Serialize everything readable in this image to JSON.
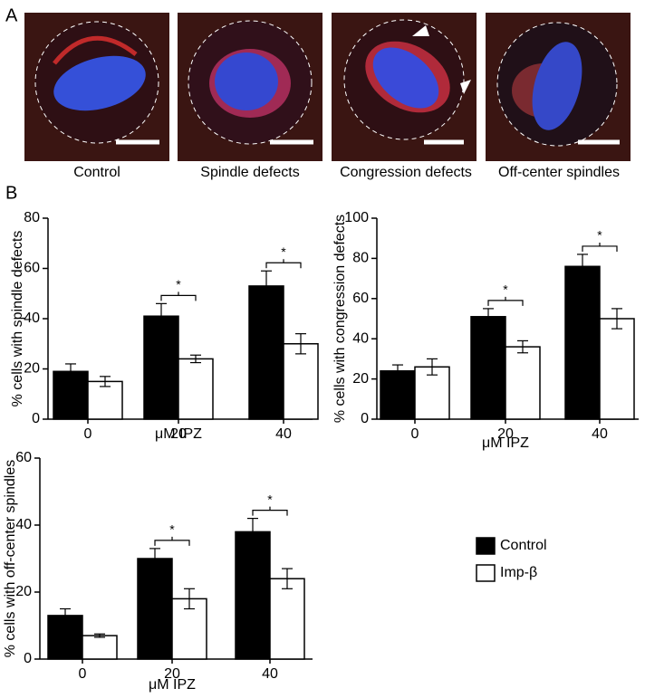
{
  "panel_labels": [
    "A",
    "B"
  ],
  "images": [
    {
      "caption": "Control"
    },
    {
      "caption": "Spindle defects"
    },
    {
      "caption": "Congression defects"
    },
    {
      "caption": "Off-center spindles"
    }
  ],
  "chart_data": [
    {
      "type": "bar",
      "y_label": "% cells with spindle defects",
      "x_label": "μM IPZ",
      "categories": [
        "0",
        "20",
        "40"
      ],
      "ylim": [
        0,
        80
      ],
      "yticks": [
        0,
        20,
        40,
        60,
        80
      ],
      "series": [
        {
          "color": "#000000",
          "values": [
            19,
            41,
            53
          ],
          "errors": [
            3,
            5,
            6
          ]
        },
        {
          "color": "#ffffff",
          "values": [
            15,
            24,
            30
          ],
          "errors": [
            2,
            1.5,
            4
          ]
        }
      ],
      "significance": [
        null,
        "*",
        "*"
      ]
    },
    {
      "type": "bar",
      "y_label": "% cells with congression defects",
      "x_label": "μM IPZ",
      "categories": [
        "0",
        "20",
        "40"
      ],
      "ylim": [
        0,
        100
      ],
      "yticks": [
        0,
        20,
        40,
        60,
        80,
        100
      ],
      "series": [
        {
          "color": "#000000",
          "values": [
            24,
            51,
            76
          ],
          "errors": [
            3,
            4,
            6
          ]
        },
        {
          "color": "#ffffff",
          "values": [
            26,
            36,
            50
          ],
          "errors": [
            4,
            3,
            5
          ]
        }
      ],
      "significance": [
        null,
        "*",
        "*"
      ]
    },
    {
      "type": "bar",
      "y_label": "% cells with off-center spindles",
      "x_label": "μM IPZ",
      "categories": [
        "0",
        "20",
        "40"
      ],
      "ylim": [
        0,
        60
      ],
      "yticks": [
        0,
        20,
        40,
        60
      ],
      "series": [
        {
          "name": "Control",
          "color": "#000000",
          "values": [
            13,
            30,
            38
          ],
          "errors": [
            2,
            3,
            4
          ]
        },
        {
          "name": "Imp-β",
          "color": "#ffffff",
          "values": [
            7,
            18,
            24
          ],
          "errors": [
            0.5,
            3,
            3
          ]
        }
      ],
      "significance": [
        null,
        "*",
        "*"
      ]
    }
  ]
}
